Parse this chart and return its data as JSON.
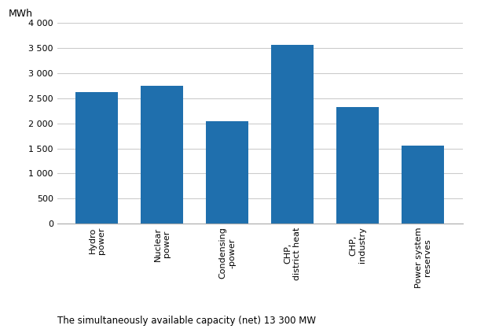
{
  "categories": [
    "Hydro\npower",
    "Nuclear\npower",
    "Condensing\n-power",
    "CHP,\ndistrict heat",
    "CHP,\nindustry",
    "Power system\nreserves"
  ],
  "values": [
    2620,
    2750,
    2050,
    3560,
    2330,
    1560
  ],
  "bar_color": "#1F6FAD",
  "ylabel": "MWh",
  "ylim": [
    0,
    4000
  ],
  "yticks": [
    0,
    500,
    1000,
    1500,
    2000,
    2500,
    3000,
    3500,
    4000
  ],
  "footnote": "The simultaneously available capacity (net) 13 300 MW",
  "bar_width": 0.65,
  "background_color": "#ffffff",
  "grid_color": "#cccccc",
  "ylabel_fontsize": 9,
  "tick_fontsize": 8,
  "footnote_fontsize": 8.5
}
